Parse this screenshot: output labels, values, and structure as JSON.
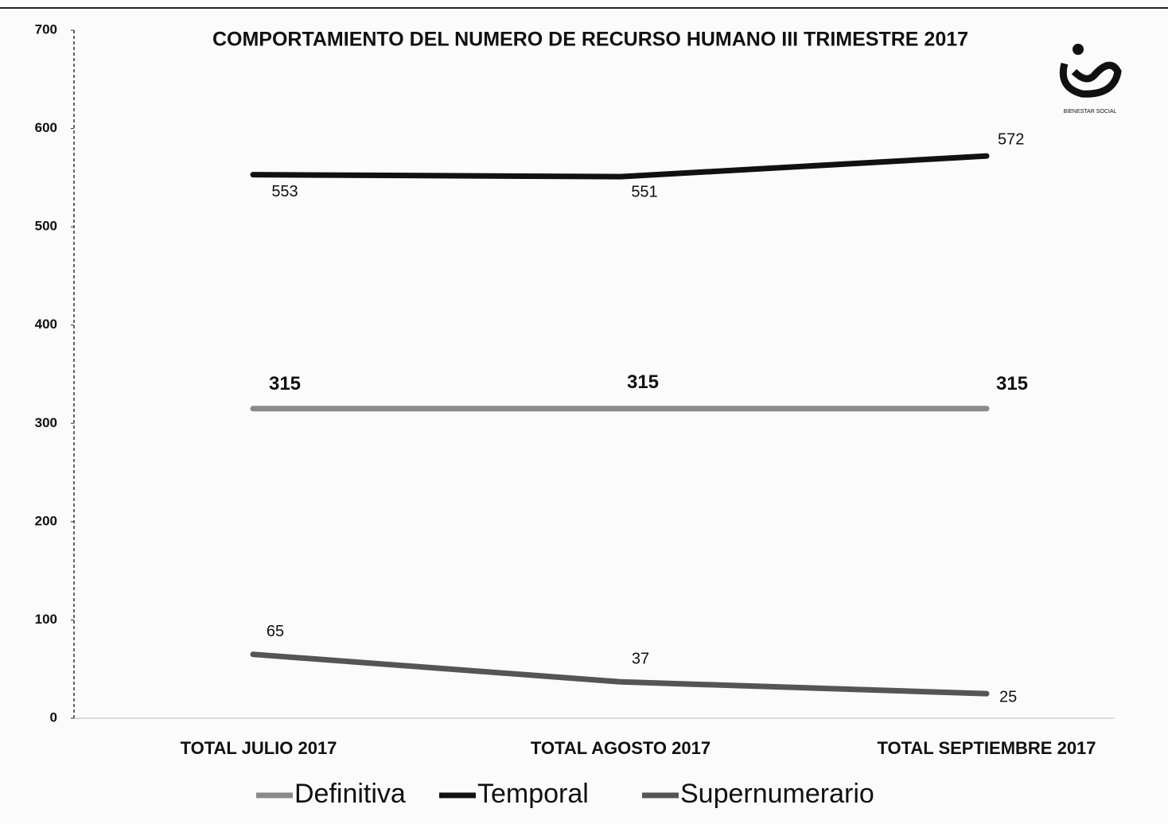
{
  "chart_data": {
    "type": "line",
    "title": "COMPORTAMIENTO  DEL NUMERO DE RECURSO HUMANO III TRIMESTRE 2017",
    "categories": [
      "TOTAL JULIO 2017",
      "TOTAL AGOSTO 2017",
      "TOTAL SEPTIEMBRE 2017"
    ],
    "series": [
      {
        "name": "Definitiva",
        "color": "#8a8a8a",
        "values": [
          315,
          315,
          315
        ]
      },
      {
        "name": "Temporal",
        "color": "#111111",
        "values": [
          553,
          551,
          572
        ]
      },
      {
        "name": "Supernumerario",
        "color": "#555555",
        "values": [
          65,
          37,
          25
        ]
      }
    ],
    "ylim": [
      0,
      700
    ],
    "yticks": [
      0,
      100,
      200,
      300,
      400,
      500,
      600,
      700
    ],
    "legend": "bottom"
  }
}
